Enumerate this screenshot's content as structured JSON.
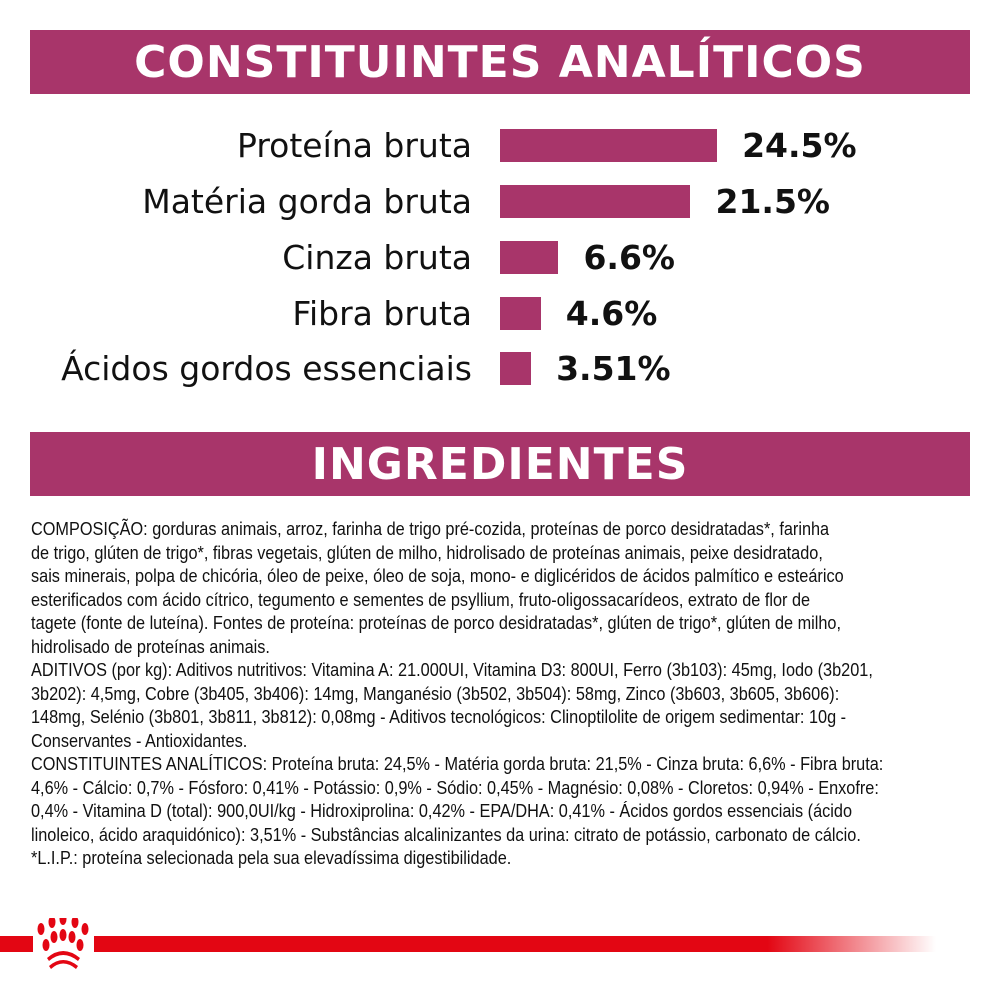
{
  "sections": {
    "analytical_title": "CONSTITUINTES ANALÍTICOS",
    "ingredients_title": "INGREDIENTES"
  },
  "chart_data": {
    "type": "bar",
    "orientation": "horizontal",
    "categories": [
      "Proteína bruta",
      "Matéria gorda bruta",
      "Cinza bruta",
      "Fibra bruta",
      "Ácidos gordos essenciais"
    ],
    "values": [
      24.5,
      21.5,
      6.6,
      4.6,
      3.51
    ],
    "labels": [
      "24.5%",
      "21.5%",
      "6.6%",
      "4.6%",
      "3.51%"
    ],
    "bar_color": "#a8356a"
  },
  "ingredients_lines": [
    "COMPOSIÇÃO: gorduras animais, arroz, farinha de trigo pré-cozida, proteínas de porco desidratadas*, farinha",
    "de trigo, glúten de trigo*, fibras vegetais, glúten de milho, hidrolisado de proteínas animais, peixe desidratado,",
    "sais minerais, polpa de chicória, óleo de peixe, óleo de soja, mono- e diglicéridos de ácidos palmítico e esteárico",
    "esterificados com ácido cítrico, tegumento e sementes de psyllium, fruto-oligossacarídeos, extrato de flor de",
    "tagete (fonte de luteína). Fontes de proteína: proteínas de porco desidratadas*, glúten de trigo*, glúten de milho,",
    "hidrolisado de proteínas animais.",
    "ADITIVOS (por kg): Aditivos nutritivos: Vitamina A: 21.000UI, Vitamina D3: 800UI, Ferro (3b103): 45mg, Iodo (3b201,",
    "3b202): 4,5mg, Cobre (3b405, 3b406): 14mg, Manganésio (3b502, 3b504): 58mg, Zinco (3b603, 3b605, 3b606):",
    "148mg, Selénio (3b801, 3b811, 3b812): 0,08mg - Aditivos tecnológicos: Clinoptilolite de origem sedimentar: 10g -",
    "Conservantes - Antioxidantes.",
    "CONSTITUINTES ANALÍTICOS: Proteína bruta: 24,5% - Matéria gorda bruta: 21,5% - Cinza bruta: 6,6% - Fibra bruta:",
    "4,6% - Cálcio: 0,7% - Fósforo: 0,41% - Potássio: 0,9% - Sódio: 0,45% - Magnésio: 0,08% - Cloretos: 0,94% - Enxofre:",
    "0,4% - Vitamina D (total): 900,0UI/kg - Hidroxiprolina: 0,42% - EPA/DHA: 0,41% - Ácidos gordos essenciais (ácido",
    "linoleico, ácido araquidónico): 3,51% - Substâncias alcalinizantes da urina: citrato de potássio, carbonato de cálcio.",
    "*L.I.P.: proteína selecionada pela sua elevadíssima digestibilidade."
  ],
  "brand_color": "#e30613"
}
